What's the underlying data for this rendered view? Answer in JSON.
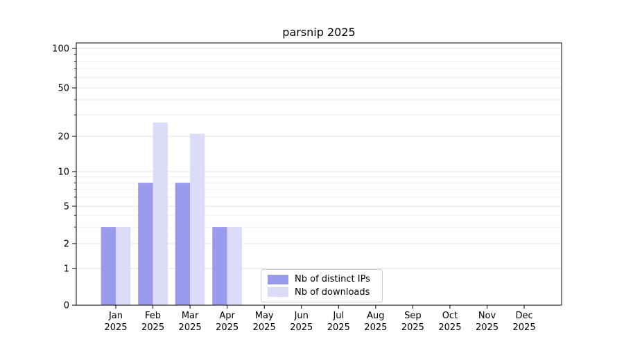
{
  "figure": {
    "background": "#ffffff"
  },
  "chart_data": {
    "type": "bar",
    "title": "parsnip 2025",
    "categories": [
      "Jan",
      "Feb",
      "Mar",
      "Apr",
      "May",
      "Jun",
      "Jul",
      "Aug",
      "Sep",
      "Oct",
      "Nov",
      "Dec"
    ],
    "x_year_label": "2025",
    "series": [
      {
        "name": "Nb of distinct IPs",
        "color": "#9b9bee",
        "values": [
          3,
          8,
          8,
          3,
          0,
          0,
          0,
          0,
          0,
          0,
          0,
          0
        ]
      },
      {
        "name": "Nb of downloads",
        "color": "#dcdcf9",
        "values": [
          3,
          26,
          21,
          3,
          0,
          0,
          0,
          0,
          0,
          0,
          0,
          0
        ]
      }
    ],
    "yticks": [
      0,
      1,
      2,
      5,
      10,
      20,
      50,
      100
    ],
    "minor_yticks": [
      3,
      4,
      6,
      7,
      8,
      9,
      30,
      40,
      60,
      70,
      80,
      90
    ],
    "ylim": [
      0,
      100
    ],
    "scale": "log-like",
    "grid": true,
    "legend_position": "inside-bottom-center-left",
    "grid_color_major": "#e0e0e0",
    "grid_color_minor": "#efefef",
    "axis_color": "#000000"
  }
}
